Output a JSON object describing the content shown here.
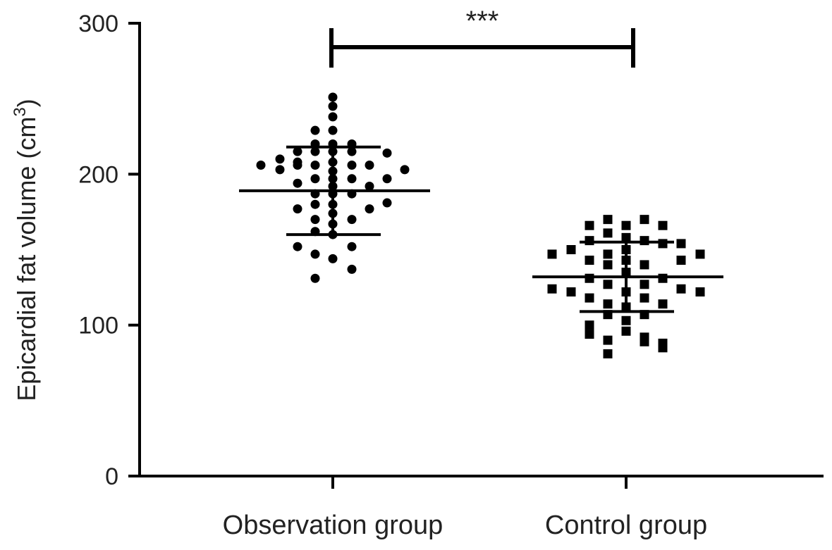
{
  "chart_data": {
    "type": "scatter",
    "ylabel": "Epicardial fat volume (cm",
    "ylabel_sup": "3",
    "ylabel_close": ")",
    "ylim": [
      0,
      300
    ],
    "yticks": [
      0,
      100,
      200,
      300
    ],
    "ytick_labels": [
      "0",
      "100",
      "200",
      "300"
    ],
    "categories": [
      "Observation group",
      "Control group"
    ],
    "grid": false,
    "significance": {
      "label": "***",
      "between": [
        "Observation group",
        "Control group"
      ]
    },
    "series": [
      {
        "category": "Observation group",
        "marker": "circle",
        "mean": 189,
        "sd_upper": 218,
        "sd_lower": 160,
        "points": [
          {
            "dx": 0,
            "y": 251
          },
          {
            "dx": 0,
            "y": 245
          },
          {
            "dx": 0,
            "y": 238
          },
          {
            "dx": -25,
            "y": 229
          },
          {
            "dx": 0,
            "y": 229
          },
          {
            "dx": -25,
            "y": 220
          },
          {
            "dx": 0,
            "y": 220
          },
          {
            "dx": 27,
            "y": 220
          },
          {
            "dx": -50,
            "y": 215
          },
          {
            "dx": -25,
            "y": 215
          },
          {
            "dx": 0,
            "y": 215
          },
          {
            "dx": 27,
            "y": 215
          },
          {
            "dx": 77,
            "y": 214
          },
          {
            "dx": -75,
            "y": 210
          },
          {
            "dx": -50,
            "y": 208
          },
          {
            "dx": 0,
            "y": 208
          },
          {
            "dx": -102,
            "y": 206
          },
          {
            "dx": -50,
            "y": 206
          },
          {
            "dx": -25,
            "y": 206
          },
          {
            "dx": 27,
            "y": 206
          },
          {
            "dx": 52,
            "y": 206
          },
          {
            "dx": -75,
            "y": 203
          },
          {
            "dx": 102,
            "y": 203
          },
          {
            "dx": 0,
            "y": 202
          },
          {
            "dx": -25,
            "y": 197
          },
          {
            "dx": 0,
            "y": 197
          },
          {
            "dx": 27,
            "y": 197
          },
          {
            "dx": 77,
            "y": 197
          },
          {
            "dx": -50,
            "y": 194
          },
          {
            "dx": 0,
            "y": 192
          },
          {
            "dx": 52,
            "y": 192
          },
          {
            "dx": -25,
            "y": 187
          },
          {
            "dx": 0,
            "y": 187
          },
          {
            "dx": 27,
            "y": 187
          },
          {
            "dx": 77,
            "y": 181
          },
          {
            "dx": -25,
            "y": 180
          },
          {
            "dx": 0,
            "y": 180
          },
          {
            "dx": -50,
            "y": 177
          },
          {
            "dx": 52,
            "y": 177
          },
          {
            "dx": 0,
            "y": 174
          },
          {
            "dx": -25,
            "y": 170
          },
          {
            "dx": 27,
            "y": 170
          },
          {
            "dx": 0,
            "y": 167
          },
          {
            "dx": -25,
            "y": 162
          },
          {
            "dx": 0,
            "y": 160
          },
          {
            "dx": -50,
            "y": 152
          },
          {
            "dx": 27,
            "y": 152
          },
          {
            "dx": -25,
            "y": 147
          },
          {
            "dx": 0,
            "y": 144
          },
          {
            "dx": 27,
            "y": 137
          },
          {
            "dx": -25,
            "y": 131
          }
        ]
      },
      {
        "category": "Control group",
        "marker": "square",
        "mean": 132,
        "sd_upper": 155,
        "sd_lower": 109,
        "points": [
          {
            "dx": -26,
            "y": 170
          },
          {
            "dx": 26,
            "y": 170
          },
          {
            "dx": -52,
            "y": 166
          },
          {
            "dx": 0,
            "y": 166
          },
          {
            "dx": 52,
            "y": 166
          },
          {
            "dx": -26,
            "y": 161
          },
          {
            "dx": 0,
            "y": 158
          },
          {
            "dx": -52,
            "y": 156
          },
          {
            "dx": 26,
            "y": 156
          },
          {
            "dx": 52,
            "y": 154
          },
          {
            "dx": 78,
            "y": 154
          },
          {
            "dx": -78,
            "y": 150
          },
          {
            "dx": 0,
            "y": 150
          },
          {
            "dx": -105,
            "y": 147
          },
          {
            "dx": -26,
            "y": 147
          },
          {
            "dx": 105,
            "y": 147
          },
          {
            "dx": -52,
            "y": 143
          },
          {
            "dx": 0,
            "y": 143
          },
          {
            "dx": -26,
            "y": 140
          },
          {
            "dx": 26,
            "y": 140
          },
          {
            "dx": 78,
            "y": 143
          },
          {
            "dx": 0,
            "y": 135
          },
          {
            "dx": -52,
            "y": 131
          },
          {
            "dx": 52,
            "y": 131
          },
          {
            "dx": -26,
            "y": 127
          },
          {
            "dx": 26,
            "y": 127
          },
          {
            "dx": -105,
            "y": 124
          },
          {
            "dx": -78,
            "y": 122
          },
          {
            "dx": 0,
            "y": 122
          },
          {
            "dx": 78,
            "y": 124
          },
          {
            "dx": 105,
            "y": 122
          },
          {
            "dx": -52,
            "y": 118
          },
          {
            "dx": 26,
            "y": 118
          },
          {
            "dx": -26,
            "y": 114
          },
          {
            "dx": 52,
            "y": 114
          },
          {
            "dx": 0,
            "y": 112
          },
          {
            "dx": -26,
            "y": 107
          },
          {
            "dx": 26,
            "y": 107
          },
          {
            "dx": 0,
            "y": 103
          },
          {
            "dx": -52,
            "y": 100
          },
          {
            "dx": 0,
            "y": 96
          },
          {
            "dx": -52,
            "y": 94
          },
          {
            "dx": 26,
            "y": 92
          },
          {
            "dx": -26,
            "y": 90
          },
          {
            "dx": 26,
            "y": 89
          },
          {
            "dx": 52,
            "y": 88
          },
          {
            "dx": 52,
            "y": 85
          },
          {
            "dx": -26,
            "y": 81
          }
        ]
      }
    ]
  }
}
